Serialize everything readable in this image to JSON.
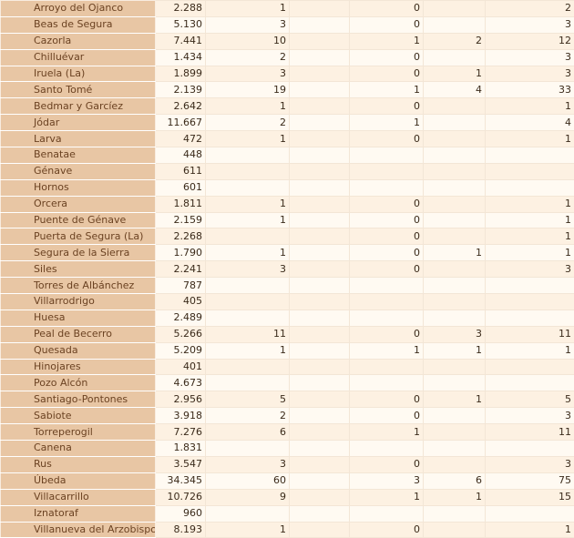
{
  "rows": [
    [
      "Arroyo del Ojanco",
      "2.288",
      "1",
      "",
      "0",
      "",
      "2"
    ],
    [
      "Beas de Segura",
      "5.130",
      "3",
      "",
      "0",
      "",
      "3"
    ],
    [
      "Cazorla",
      "7.441",
      "10",
      "",
      "1",
      "2",
      "12"
    ],
    [
      "Chilluévar",
      "1.434",
      "2",
      "",
      "0",
      "",
      "3"
    ],
    [
      "Iruela (La)",
      "1.899",
      "3",
      "",
      "0",
      "1",
      "3"
    ],
    [
      "Santo Tomé",
      "2.139",
      "19",
      "",
      "1",
      "4",
      "33"
    ],
    [
      "Bedmar y Garcíez",
      "2.642",
      "1",
      "",
      "0",
      "",
      "1"
    ],
    [
      "Jódar",
      "11.667",
      "2",
      "",
      "1",
      "",
      "4"
    ],
    [
      "Larva",
      "472",
      "1",
      "",
      "0",
      "",
      "1"
    ],
    [
      "Benatae",
      "448",
      "",
      "",
      "",
      "",
      ""
    ],
    [
      "Génave",
      "611",
      "",
      "",
      "",
      "",
      ""
    ],
    [
      "Hornos",
      "601",
      "",
      "",
      "",
      "",
      ""
    ],
    [
      "Orcera",
      "1.811",
      "1",
      "",
      "0",
      "",
      "1"
    ],
    [
      "Puente de Génave",
      "2.159",
      "1",
      "",
      "0",
      "",
      "1"
    ],
    [
      "Puerta de Segura (La)",
      "2.268",
      "",
      "",
      "0",
      "",
      "1"
    ],
    [
      "Segura de la Sierra",
      "1.790",
      "1",
      "",
      "0",
      "1",
      "1"
    ],
    [
      "Siles",
      "2.241",
      "3",
      "",
      "0",
      "",
      "3"
    ],
    [
      "Torres de Albánchez",
      "787",
      "",
      "",
      "",
      "",
      ""
    ],
    [
      "Villarrodrigo",
      "405",
      "",
      "",
      "",
      "",
      ""
    ],
    [
      "Huesa",
      "2.489",
      "",
      "",
      "",
      "",
      ""
    ],
    [
      "Peal de Becerro",
      "5.266",
      "11",
      "",
      "0",
      "3",
      "11"
    ],
    [
      "Quesada",
      "5.209",
      "1",
      "",
      "1",
      "1",
      "1"
    ],
    [
      "Hinojares",
      "401",
      "",
      "",
      "",
      "",
      ""
    ],
    [
      "Pozo Alcón",
      "4.673",
      "",
      "",
      "",
      "",
      ""
    ],
    [
      "Santiago-Pontones",
      "2.956",
      "5",
      "",
      "0",
      "1",
      "5"
    ],
    [
      "Sabiote",
      "3.918",
      "2",
      "",
      "0",
      "",
      "3"
    ],
    [
      "Torreperogil",
      "7.276",
      "6",
      "",
      "1",
      "",
      "11"
    ],
    [
      "Canena",
      "1.831",
      "",
      "",
      "",
      "",
      ""
    ],
    [
      "Rus",
      "3.547",
      "3",
      "",
      "0",
      "",
      "3"
    ],
    [
      "Úbeda",
      "34.345",
      "60",
      "",
      "3",
      "6",
      "75"
    ],
    [
      "Villacarrillo",
      "10.726",
      "9",
      "",
      "1",
      "1",
      "15"
    ],
    [
      "Iznatoraf",
      "960",
      "",
      "",
      "",
      "",
      ""
    ],
    [
      "Villanueva del Arzobispo",
      "8.193",
      "1",
      "",
      "0",
      "",
      "1"
    ]
  ],
  "colors": {
    "name_bg": "#e8c6a4",
    "row_odd": "#fdf1e2",
    "row_even": "#fffaf2"
  }
}
